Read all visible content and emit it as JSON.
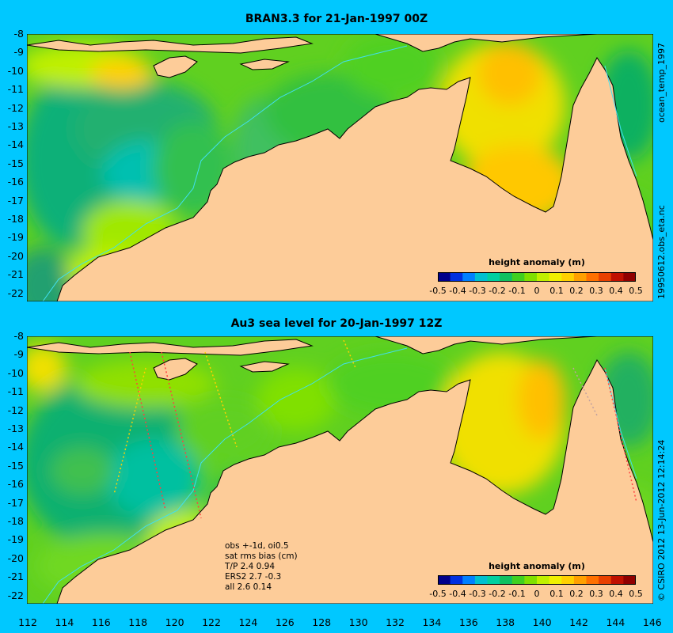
{
  "top_panel": {
    "title": "BRAN3.3 for 21-Jan-1997 00Z",
    "side_label": "1995061 2.obs_eta.nc ocean_temp_1997",
    "side_label_upper": "ocean_temp_1997",
    "side_label_lower": "19950612.obs_eta.nc",
    "colorbar_title": "height anomaly  (m)"
  },
  "bottom_panel": {
    "title": "Au3 sea level  for 20-Jan-1997 12Z",
    "side_label": "© CSIRO 2012   13-Jun-2012 12:14:24",
    "colorbar_title": "height anomaly  (m)",
    "stats": {
      "line1": "obs +-1d, oi0.5",
      "line2": "sat rms bias (cm)",
      "line3": "T/P  2.4 0.94",
      "line4": "ERS2 2.7 -0.3",
      "line5": "all 2.6 0.14"
    }
  },
  "y_ticks": [
    "-8",
    "-9",
    "-10",
    "-11",
    "-12",
    "-13",
    "-14",
    "-15",
    "-16",
    "-17",
    "-18",
    "-19",
    "-20",
    "-21",
    "-22"
  ],
  "x_ticks": [
    "112",
    "114",
    "116",
    "118",
    "120",
    "122",
    "124",
    "126",
    "128",
    "130",
    "132",
    "134",
    "136",
    "138",
    "140",
    "142",
    "144",
    "146"
  ],
  "colorbar_ticks": [
    "-0.5",
    "-0.4",
    "-0.3",
    "-0.2",
    "-0.1",
    "0",
    "0.1",
    "0.2",
    "0.3",
    "0.4",
    "0.5"
  ],
  "colors": {
    "background": "#00c8ff",
    "land": "#fdcc99",
    "coast_line": "#000000",
    "isobath": "#40e0f0",
    "colormap": [
      "#00008b",
      "#0030e0",
      "#0080ff",
      "#00c0d0",
      "#00d0a0",
      "#10c060",
      "#40d020",
      "#80e000",
      "#c0f000",
      "#f0f000",
      "#ffd000",
      "#ffa000",
      "#ff7000",
      "#e84000",
      "#c01000",
      "#900000"
    ]
  }
}
